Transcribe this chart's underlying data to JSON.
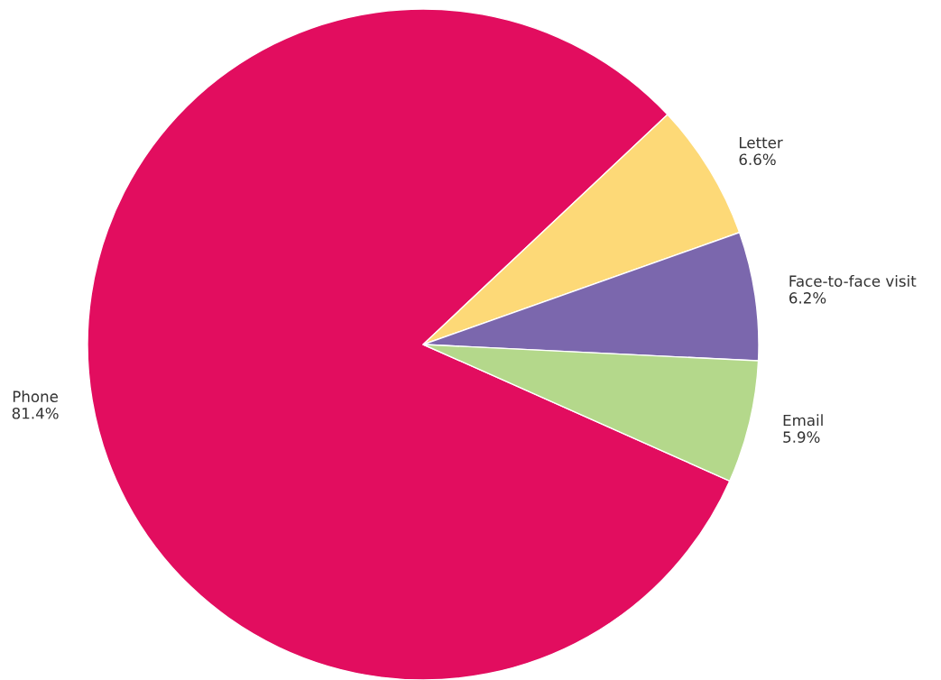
{
  "chart_data": {
    "type": "pie",
    "categories": [
      "Phone",
      "Letter",
      "Face-to-face visit",
      "Email"
    ],
    "values": [
      81.4,
      6.6,
      6.2,
      5.9
    ],
    "colors": [
      "#e20d5f",
      "#fdd977",
      "#7b67ad",
      "#b4d88b"
    ],
    "value_labels": [
      "81.4%",
      "6.6%",
      "6.2%",
      "5.9%"
    ]
  }
}
